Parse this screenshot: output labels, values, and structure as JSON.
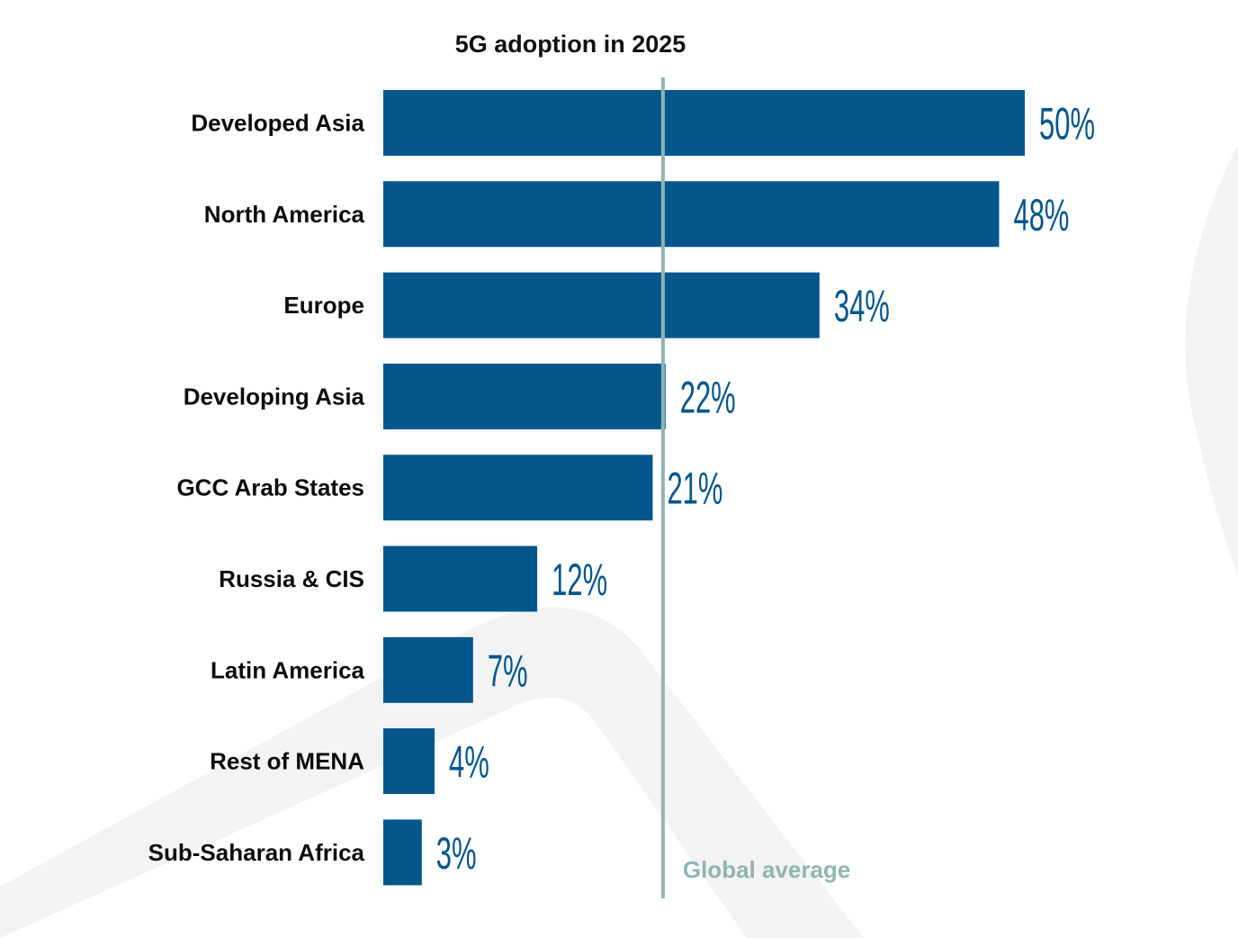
{
  "chart_data": {
    "type": "bar",
    "orientation": "horizontal",
    "title": "5G adoption in 2025",
    "categories": [
      "Developed Asia",
      "North America",
      "Europe",
      "Developing Asia",
      "GCC Arab States",
      "Russia & CIS",
      "Latin America",
      "Rest of MENA",
      "Sub-Saharan Africa"
    ],
    "values": [
      50,
      48,
      34,
      22,
      21,
      12,
      7,
      4,
      3
    ],
    "value_labels": [
      "50%",
      "48%",
      "34%",
      "22%",
      "21%",
      "12%",
      "7%",
      "4%",
      "3%"
    ],
    "unit": "%",
    "xlim": [
      0,
      50
    ],
    "reference_line": {
      "label": "Global average",
      "value": 21.8
    },
    "grid": false,
    "legend": "none",
    "colors": {
      "bar": "#04568d",
      "value_text": "#04568d",
      "reference_line": "#8fb4b4",
      "reference_text": "#8fb4b4",
      "background_shape": "#f3f3f3"
    }
  }
}
